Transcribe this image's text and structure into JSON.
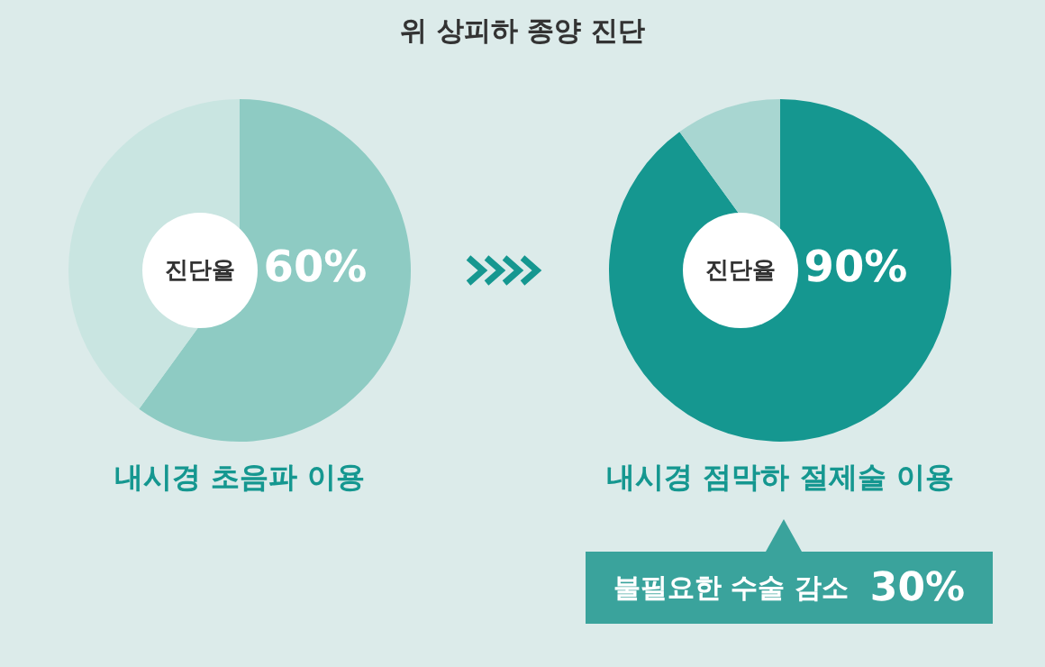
{
  "chart_data": [
    {
      "type": "pie",
      "title": "위 상피하 종양 진단",
      "xlabel": "내시경 초음파 이용",
      "categories": [
        null,
        null
      ],
      "values": [
        60,
        40
      ],
      "colors": [
        "#8ecbc3",
        "#c9e5e1"
      ],
      "value_labels": [
        "60%",
        null
      ],
      "annotations": [
        "진단율"
      ],
      "legend": false
    },
    {
      "type": "pie",
      "xlabel": "내시경 점막하 절제술 이용",
      "categories": [
        null,
        null
      ],
      "values": [
        90,
        10
      ],
      "colors": [
        "#159790",
        "#a8d6d1"
      ],
      "value_labels": [
        "90%",
        null
      ],
      "annotations": [
        "진단율",
        "불필요한 수술 감소",
        "30%"
      ],
      "legend": false
    }
  ]
}
